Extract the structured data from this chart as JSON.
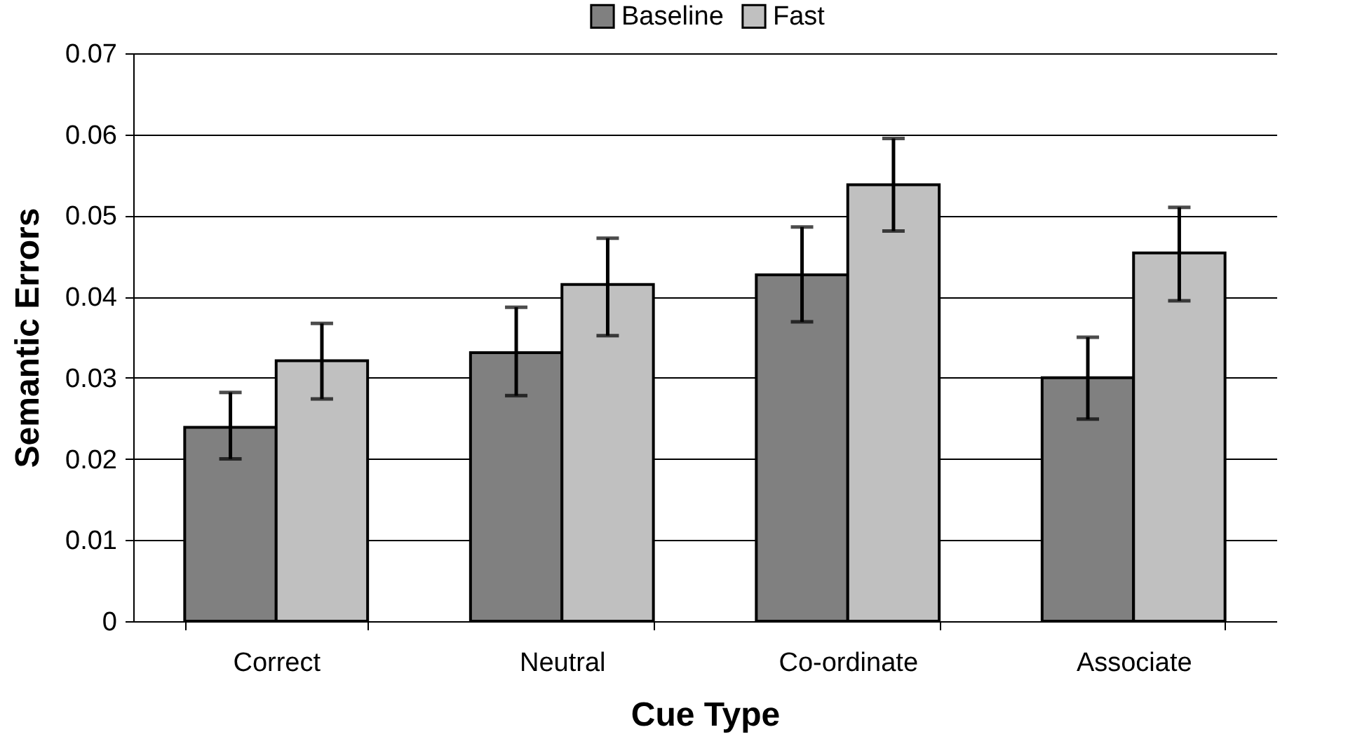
{
  "chart_data": {
    "type": "bar",
    "xlabel": "Cue Type",
    "ylabel": "Semantic Errors",
    "categories": [
      "Correct",
      "Neutral",
      "Co-ordinate",
      "Associate"
    ],
    "series": [
      {
        "name": "Baseline",
        "color": "#808080",
        "values": [
          0.0239,
          0.0331,
          0.0427,
          0.03
        ],
        "errors": [
          [
            0.02,
            0.0282
          ],
          [
            0.0278,
            0.0387
          ],
          [
            0.0369,
            0.0486
          ],
          [
            0.0249,
            0.035
          ]
        ]
      },
      {
        "name": "Fast",
        "color": "#c0c0c0",
        "values": [
          0.0321,
          0.0415,
          0.0538,
          0.0454
        ],
        "errors": [
          [
            0.0274,
            0.0367
          ],
          [
            0.0352,
            0.0472
          ],
          [
            0.0481,
            0.0595
          ],
          [
            0.0395,
            0.051
          ]
        ]
      }
    ],
    "ylim": [
      0,
      0.07
    ],
    "yticks": [
      0,
      0.01,
      0.02,
      0.03,
      0.04,
      0.05,
      0.06,
      0.07
    ],
    "grid": "y",
    "legend": "top"
  }
}
